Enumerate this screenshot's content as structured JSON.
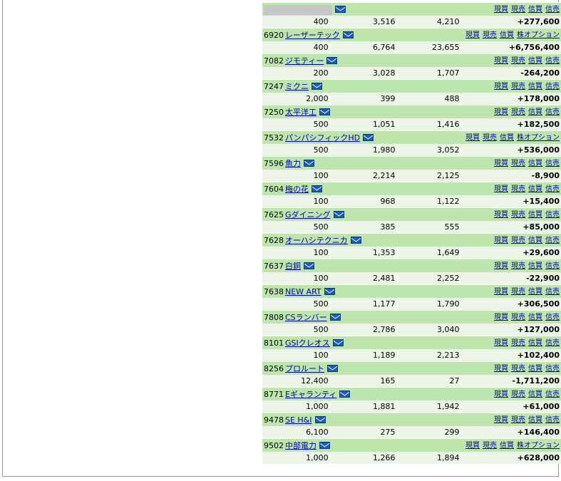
{
  "actions": {
    "buy": "現買",
    "sell": "現売",
    "margin_buy": "信買",
    "margin_sell": "信売",
    "options": "株オプション"
  },
  "colors": {
    "header_bg": "#bde6ad",
    "row_bg": "#ebf4e6",
    "gain": "#e00000",
    "loss": "#0000dd",
    "link": "#0000aa"
  },
  "holdings": [
    {
      "code": "",
      "name": "",
      "redacted": true,
      "qty": "400",
      "cost": "3,516",
      "price": "4,210",
      "pl": "+277,600",
      "options": false
    },
    {
      "code": "6920",
      "name": "レーザーテック",
      "qty": "400",
      "cost": "6,764",
      "price": "23,655",
      "pl": "+6,756,400",
      "options": true
    },
    {
      "code": "7082",
      "name": "ジモティー",
      "qty": "200",
      "cost": "3,028",
      "price": "1,707",
      "pl": "-264,200",
      "options": false
    },
    {
      "code": "7247",
      "name": "ミクニ",
      "qty": "2,000",
      "cost": "399",
      "price": "488",
      "pl": "+178,000",
      "options": false
    },
    {
      "code": "7250",
      "name": "太平洋工",
      "qty": "500",
      "cost": "1,051",
      "price": "1,416",
      "pl": "+182,500",
      "options": false
    },
    {
      "code": "7532",
      "name": "パンパシフィックHD",
      "qty": "500",
      "cost": "1,980",
      "price": "3,052",
      "pl": "+536,000",
      "options": true
    },
    {
      "code": "7596",
      "name": "魚力",
      "qty": "100",
      "cost": "2,214",
      "price": "2,125",
      "pl": "-8,900",
      "options": false
    },
    {
      "code": "7604",
      "name": "梅の花",
      "qty": "100",
      "cost": "968",
      "price": "1,122",
      "pl": "+15,400",
      "options": false
    },
    {
      "code": "7625",
      "name": "Gダイニング",
      "qty": "500",
      "cost": "385",
      "price": "555",
      "pl": "+85,000",
      "options": false
    },
    {
      "code": "7628",
      "name": "オーハシテクニカ",
      "qty": "100",
      "cost": "1,353",
      "price": "1,649",
      "pl": "+29,600",
      "options": false
    },
    {
      "code": "7637",
      "name": "白銅",
      "qty": "100",
      "cost": "2,481",
      "price": "2,252",
      "pl": "-22,900",
      "options": false
    },
    {
      "code": "7638",
      "name": "NEW ART",
      "qty": "500",
      "cost": "1,177",
      "price": "1,790",
      "pl": "+306,500",
      "options": false
    },
    {
      "code": "7808",
      "name": "CSランバー",
      "qty": "500",
      "cost": "2,786",
      "price": "3,040",
      "pl": "+127,000",
      "options": false
    },
    {
      "code": "8101",
      "name": "GSIクレオス",
      "qty": "100",
      "cost": "1,189",
      "price": "2,213",
      "pl": "+102,400",
      "options": false
    },
    {
      "code": "8256",
      "name": "プロルート",
      "qty": "12,400",
      "cost": "165",
      "price": "27",
      "pl": "-1,711,200",
      "options": false
    },
    {
      "code": "8771",
      "name": "Eギャランティ",
      "qty": "1,000",
      "cost": "1,881",
      "price": "1,942",
      "pl": "+61,000",
      "options": false
    },
    {
      "code": "9478",
      "name": "SE H&I",
      "qty": "6,100",
      "cost": "275",
      "price": "299",
      "pl": "+146,400",
      "options": false
    },
    {
      "code": "9502",
      "name": "中部電力",
      "qty": "1,000",
      "cost": "1,266",
      "price": "1,894",
      "pl": "+628,000",
      "options": true
    }
  ]
}
